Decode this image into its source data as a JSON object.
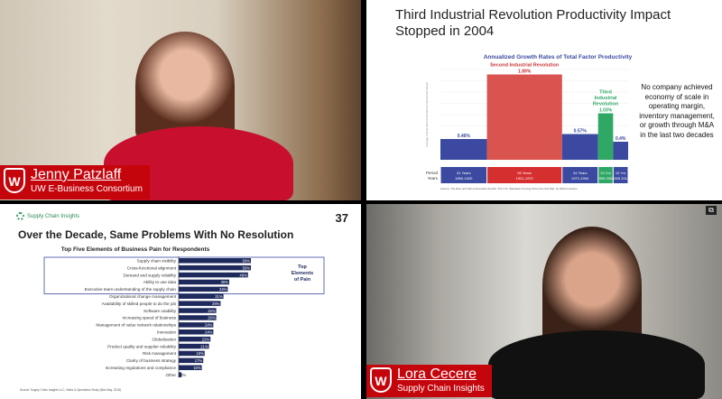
{
  "participants": [
    {
      "name": "Jenny Patzlaff",
      "org": "UW E-Business Consortium"
    },
    {
      "name": "Lora Cecere",
      "org": "Supply Chain Insights"
    }
  ],
  "slide1": {
    "title": "Third Industrial Revolution Productivity Impact Stopped in 2004",
    "note": "No company achieved economy of scale in operating margin, inventory management, or growth through M&A in the last two decades",
    "chart_data": {
      "type": "bar",
      "title": "Annualized Growth Rates of Total Factor Productivity",
      "ylabel": "Average Annual Percent Growth Across Period Shown",
      "categories": [
        "1890-1920",
        "1921-1970",
        "1971-1994",
        "1995-2004",
        "2005-2014"
      ],
      "values": [
        0.46,
        1.89,
        0.57,
        1.03,
        0.4
      ],
      "labels": [
        "0.46%",
        "1.89%",
        "0.57%",
        "1.03%",
        "0.4%"
      ],
      "annotations": [
        "Second Industrial Revolution",
        "Third Industrial Revolution"
      ],
      "period_label": "Period Years",
      "periods": [
        [
          "31 Years",
          "1890-1920"
        ],
        [
          "50 Years",
          "1921-1970"
        ],
        [
          "24 Years",
          "1971-1994"
        ],
        [
          "10 Yrs",
          "1995 2004"
        ],
        [
          "10 Yrs",
          "2005 2014"
        ]
      ],
      "years": [
        31,
        50,
        24,
        10,
        10
      ],
      "colors": [
        "#3b4aa0",
        "#d9534f",
        "#3b4aa0",
        "#2fa866",
        "#3b4aa0"
      ],
      "ylim": [
        0,
        2.0
      ],
      "source": "Source: The Rise and Fall of American Growth: The U.S. Standard of Living Since the Civil War, by Robert Gordon"
    }
  },
  "slide2": {
    "logo": "Supply Chain Insights",
    "page": "37",
    "title": "Over the Decade, Same Problems With No Resolution",
    "chart_data": {
      "type": "bar",
      "orientation": "horizontal",
      "title": "Top Five Elements of Business Pain for Respondents",
      "categories": [
        "Supply chain visibility",
        "Cross-functional alignment",
        "Demand and supply volatility",
        "Ability to use data",
        "Executive team understanding of the supply chain",
        "Organizational change management",
        "Availability of skilled people to do the job",
        "Software usability",
        "Increasing speed of business",
        "Management of value network relationships",
        "Innovation",
        "Globalization",
        "Product quality and supplier reliability",
        "Risk management",
        "Clarity of business strategy",
        "Increasing regulations and compliance",
        "Other"
      ],
      "values": [
        50,
        50,
        48,
        35,
        34,
        31,
        29,
        26,
        26,
        24,
        24,
        22,
        21,
        18,
        17,
        16,
        2
      ],
      "highlight": "Top Elements of Pain",
      "highlight_count": 5,
      "color": "#1f2a5c",
      "source": "Source: Supply Chain Insights LLC, Sales & Operations Study (Mar-May, 2018)"
    }
  }
}
